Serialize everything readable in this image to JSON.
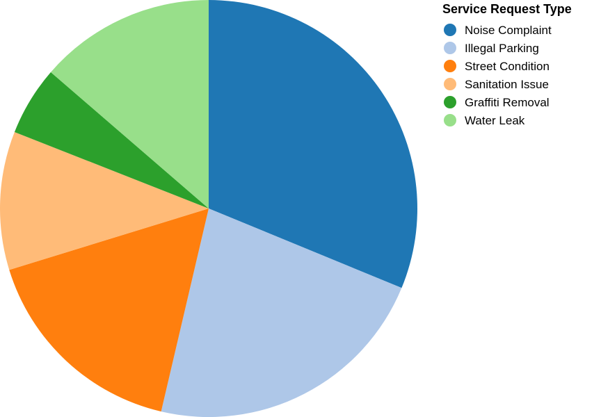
{
  "chart_data": {
    "type": "pie",
    "legend_title": "Service Request Type",
    "legend_position": "top-right",
    "categories": [
      "Noise Complaint",
      "Illegal Parking",
      "Street Condition",
      "Sanitation Issue",
      "Graffiti Removal",
      "Water Leak"
    ],
    "values": [
      32,
      23,
      17,
      11,
      5.5,
      14
    ],
    "colors": [
      "#1f77b4",
      "#aec7e8",
      "#ff7f0e",
      "#ffbb78",
      "#2ca02c",
      "#98df8a"
    ]
  }
}
